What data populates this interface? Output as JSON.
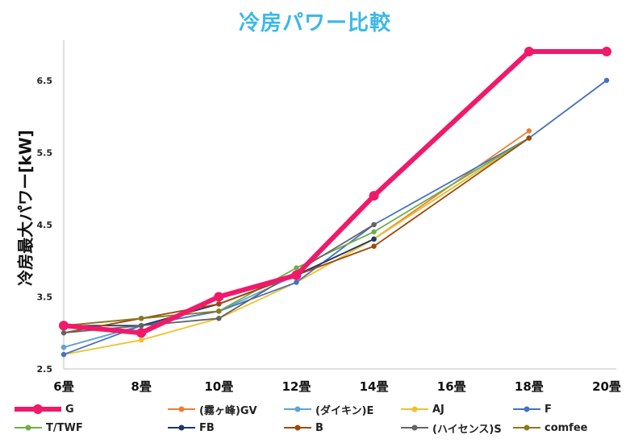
{
  "chart_data": {
    "type": "line",
    "title": "冷房パワー比較",
    "ylabel": "冷房最大パワー[kW]",
    "xlabel": "",
    "categories": [
      "6畳",
      "8畳",
      "10畳",
      "12畳",
      "14畳",
      "16畳",
      "18畳",
      "20畳"
    ],
    "ylim": [
      2.5,
      7.0
    ],
    "yticks": [
      "2.5",
      "3.5",
      "4.5",
      "5.5",
      "6.5"
    ],
    "legend_position": "bottom",
    "grid": false,
    "series": [
      {
        "name": "G",
        "color": "#f0196a",
        "featured": true,
        "values": [
          3.1,
          3.0,
          3.5,
          3.8,
          4.9,
          null,
          6.9,
          6.9
        ]
      },
      {
        "name": "(霧ヶ峰)GV",
        "color": "#ee7d31",
        "values": [
          2.8,
          3.1,
          3.4,
          3.8,
          4.3,
          null,
          5.8,
          null
        ]
      },
      {
        "name": "(ダイキン)E",
        "color": "#5aa5d8",
        "values": [
          2.8,
          3.1,
          3.3,
          3.8,
          4.3,
          null,
          5.7,
          null
        ]
      },
      {
        "name": "AJ",
        "color": "#f2c02a",
        "values": [
          2.7,
          2.9,
          3.2,
          3.7,
          4.3,
          null,
          5.7,
          6.5
        ]
      },
      {
        "name": "F",
        "color": "#4472c4",
        "values": [
          2.7,
          3.1,
          3.3,
          3.7,
          4.5,
          null,
          5.7,
          6.5
        ]
      },
      {
        "name": "T/TWF",
        "color": "#70ad47",
        "values": [
          3.1,
          3.2,
          3.3,
          3.9,
          4.4,
          null,
          5.7,
          null
        ]
      },
      {
        "name": "FB",
        "color": "#203864",
        "values": [
          3.1,
          3.1,
          3.4,
          3.8,
          4.3,
          null,
          null,
          null
        ]
      },
      {
        "name": "B",
        "color": "#9e480e",
        "values": [
          3.0,
          3.2,
          3.4,
          3.8,
          4.2,
          null,
          5.7,
          null
        ]
      },
      {
        "name": "(ハイセンス)S",
        "color": "#636363",
        "values": [
          3.0,
          3.1,
          3.2,
          null,
          4.5,
          null,
          null,
          null
        ]
      },
      {
        "name": "comfee",
        "color": "#8a7a1e",
        "values": [
          3.1,
          3.2,
          3.3,
          null,
          null,
          null,
          null,
          null
        ]
      }
    ]
  }
}
